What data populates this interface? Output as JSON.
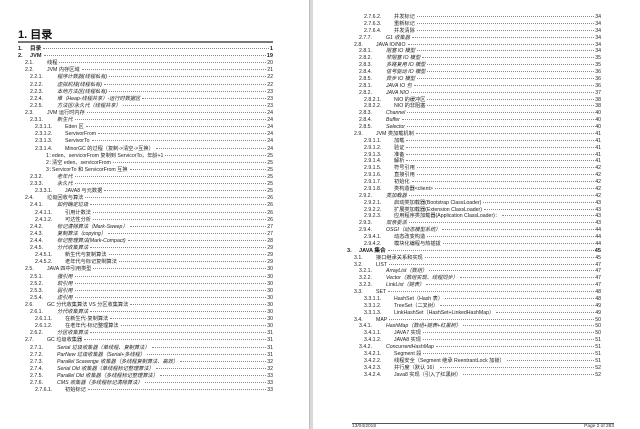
{
  "left_page": {
    "title": "1. 目录",
    "entries": [
      {
        "n": "1.",
        "t": "目录",
        "p": "1",
        "b": true
      },
      {
        "n": "2.",
        "t": "JVM",
        "p": "19",
        "b": true
      },
      {
        "n": "2.1.",
        "t": "线程",
        "p": "20"
      },
      {
        "n": "2.2.",
        "t": "JVM 内存区域",
        "p": "21"
      },
      {
        "n": "2.2.1.",
        "t": "程序计数器(线程私有)",
        "p": "22",
        "i": true
      },
      {
        "n": "2.2.2.",
        "t": "虚拟机栈(线程私有)",
        "p": "22",
        "i": true
      },
      {
        "n": "2.2.3.",
        "t": "本地方法区(线程私有)",
        "p": "23",
        "i": true
      },
      {
        "n": "2.2.4.",
        "t": "堆（Heap-线程共享）-运行时数据区",
        "p": "23",
        "i": true
      },
      {
        "n": "2.2.5.",
        "t": "方法区/永久代（线程共享）",
        "p": "23",
        "i": true
      },
      {
        "n": "2.3.",
        "t": "JVM 运行时内存",
        "p": "24"
      },
      {
        "n": "2.3.1.",
        "t": "新生代",
        "p": "24",
        "i": true
      },
      {
        "n": "2.3.1.1.",
        "t": "Eden 区",
        "p": "24"
      },
      {
        "n": "2.3.1.2.",
        "t": "ServivorFrom",
        "p": "24"
      },
      {
        "n": "2.3.1.3.",
        "t": "ServivorTo",
        "p": "24"
      },
      {
        "n": "2.3.1.4.",
        "t": "MinorGC 的过程（复制->清空->互换）",
        "p": "24"
      },
      {
        "n": "1：",
        "t": "eden、servicorFrom 复制到 ServicorTo，年龄+1",
        "p": "25",
        "lv": 5
      },
      {
        "n": "2：",
        "t": "清空 eden、servicorFrom",
        "p": "25",
        "lv": 5
      },
      {
        "n": "3：",
        "t": "ServicorTo 和 ServicorFrom 互换",
        "p": "25",
        "lv": 5
      },
      {
        "n": "2.3.2.",
        "t": "老年代",
        "p": "25",
        "i": true
      },
      {
        "n": "2.3.3.",
        "t": "永久代",
        "p": "25",
        "i": true
      },
      {
        "n": "2.3.3.1.",
        "t": "JAVA8 与元数据",
        "p": "25"
      },
      {
        "n": "2.4.",
        "t": "垃圾回收与算法",
        "p": "26"
      },
      {
        "n": "2.4.1.",
        "t": "如何确定垃圾",
        "p": "26",
        "i": true
      },
      {
        "n": "2.4.1.1.",
        "t": "引用计数法",
        "p": "26"
      },
      {
        "n": "2.4.1.2.",
        "t": "可达性分析",
        "p": "26"
      },
      {
        "n": "2.4.2.",
        "t": "标记清除算法（Mark-Sweep）",
        "p": "27",
        "i": true
      },
      {
        "n": "2.4.3.",
        "t": "复制算法（copying）",
        "p": "27",
        "i": true
      },
      {
        "n": "2.4.4.",
        "t": "标记整理算法(Mark-Compact)",
        "p": "28",
        "i": true
      },
      {
        "n": "2.4.5.",
        "t": "分代收集算法",
        "p": "29",
        "i": true
      },
      {
        "n": "2.4.5.1.",
        "t": "新生代与复制算法",
        "p": "29"
      },
      {
        "n": "2.4.5.2.",
        "t": "老年代与标记复制算法",
        "p": "29"
      },
      {
        "n": "2.5.",
        "t": "JAVA 四中引用类型",
        "p": "30"
      },
      {
        "n": "2.5.1.",
        "t": "强引用",
        "p": "30",
        "i": true
      },
      {
        "n": "2.5.2.",
        "t": "软引用",
        "p": "30",
        "i": true
      },
      {
        "n": "2.5.3.",
        "t": "弱引用",
        "p": "30",
        "i": true
      },
      {
        "n": "2.5.4.",
        "t": "虚引用",
        "p": "30",
        "i": true
      },
      {
        "n": "2.6.",
        "t": "GC 分代收集算法 VS 分区收集算法",
        "p": "30"
      },
      {
        "n": "2.6.1.",
        "t": "分代收集算法",
        "p": "30",
        "i": true
      },
      {
        "n": "2.6.1.1.",
        "t": "在新生代-复制算法",
        "p": "30"
      },
      {
        "n": "2.6.1.2.",
        "t": "在老年代-标记整理算法",
        "p": "30"
      },
      {
        "n": "2.6.2.",
        "t": "分区收集算法",
        "p": "31",
        "i": true
      },
      {
        "n": "2.7.",
        "t": "GC 垃圾收集器",
        "p": "31"
      },
      {
        "n": "2.7.1.",
        "t": "Serial 垃圾收集器（单线程、复制算法）",
        "p": "31",
        "i": true
      },
      {
        "n": "2.7.2.",
        "t": "ParNew 垃圾收集器（Serial+多线程）",
        "p": "31",
        "i": true
      },
      {
        "n": "2.7.3.",
        "t": "Parallel Scavenge 收集器（多线程复制算法、高效）",
        "p": "32",
        "i": true
      },
      {
        "n": "2.7.4.",
        "t": "Serial Old 收集器（单线程标记整理算法）",
        "p": "32",
        "i": true
      },
      {
        "n": "2.7.5.",
        "t": "Parallel Old 收集器（多线程标记整理算法）",
        "p": "33",
        "i": true
      },
      {
        "n": "2.7.6.",
        "t": "CMS 收集器（多线程标记清除算法）",
        "p": "33",
        "i": true
      },
      {
        "n": "2.7.6.1.",
        "t": "初始标记",
        "p": "33"
      }
    ]
  },
  "right_page": {
    "entries": [
      {
        "n": "2.7.6.2.",
        "t": "并发标记",
        "p": "34"
      },
      {
        "n": "2.7.6.3.",
        "t": "重新标记",
        "p": "34"
      },
      {
        "n": "2.7.6.4.",
        "t": "并发清除",
        "p": "34"
      },
      {
        "n": "2.7.7.",
        "t": "G1 收集器",
        "p": "34",
        "i": true
      },
      {
        "n": "2.8.",
        "t": "JAVA IO/NIO",
        "p": "34"
      },
      {
        "n": "2.8.1.",
        "t": "阻塞 IO 模型",
        "p": "34",
        "i": true
      },
      {
        "n": "2.8.2.",
        "t": "非阻塞 IO 模型",
        "p": "35",
        "i": true
      },
      {
        "n": "2.8.3.",
        "t": "多路复用 IO 模型",
        "p": "35",
        "i": true
      },
      {
        "n": "2.8.4.",
        "t": "信号驱动 IO 模型",
        "p": "36",
        "i": true
      },
      {
        "n": "2.8.5.",
        "t": "异步 IO 模型",
        "p": "36",
        "i": true
      },
      {
        "n": "2.8.1.",
        "t": "JAVA IO 包",
        "p": "36",
        "i": true
      },
      {
        "n": "2.8.2.",
        "t": "JAVA NIO",
        "p": "37",
        "i": true
      },
      {
        "n": "2.8.2.1.",
        "t": "NIO 的缓冲区",
        "p": "38"
      },
      {
        "n": "2.8.2.2.",
        "t": "NIO 的非阻塞",
        "p": "38"
      },
      {
        "n": "2.8.3.",
        "t": "Channel",
        "p": "40",
        "i": true
      },
      {
        "n": "2.8.4.",
        "t": "Buffer",
        "p": "40",
        "i": true
      },
      {
        "n": "2.8.5.",
        "t": "Selector",
        "p": "40",
        "i": true
      },
      {
        "n": "2.9.",
        "t": "JVM 类加载机制",
        "p": "41"
      },
      {
        "n": "2.9.1.1.",
        "t": "加载",
        "p": "41"
      },
      {
        "n": "2.9.1.2.",
        "t": "验证",
        "p": "41"
      },
      {
        "n": "2.9.1.3.",
        "t": "准备",
        "p": "41"
      },
      {
        "n": "2.9.1.4.",
        "t": "解析",
        "p": "41"
      },
      {
        "n": "2.9.1.5.",
        "t": "符号引用",
        "p": "42"
      },
      {
        "n": "2.9.1.6.",
        "t": "直接引用",
        "p": "42"
      },
      {
        "n": "2.9.1.7.",
        "t": "初始化",
        "p": "42"
      },
      {
        "n": "2.9.1.8.",
        "t": "类构造器<client>",
        "p": "42"
      },
      {
        "n": "2.9.2.",
        "t": "类加载器",
        "p": "42",
        "i": true
      },
      {
        "n": "2.9.2.1.",
        "t": "启动类加载器(Bootstrap ClassLoader)",
        "p": "43"
      },
      {
        "n": "2.9.2.2.",
        "t": "扩展类加载器(Extension ClassLoader)",
        "p": "43"
      },
      {
        "n": "2.9.2.3.",
        "t": "应用程序类加载器(Application ClassLoader)：",
        "p": "43"
      },
      {
        "n": "2.9.3.",
        "t": "双亲委派",
        "p": "43",
        "i": true
      },
      {
        "n": "2.9.4.",
        "t": "OSGI（动态模型系统）",
        "p": "44",
        "i": true
      },
      {
        "n": "2.9.4.1.",
        "t": "动态改变构造",
        "p": "44"
      },
      {
        "n": "2.9.4.2.",
        "t": "模块化编程与热插拔",
        "p": "44"
      },
      {
        "n": "3.",
        "t": "JAVA 集合",
        "p": "45",
        "b": true
      },
      {
        "n": "3.1.",
        "t": "接口继承关系和实现",
        "p": "45"
      },
      {
        "n": "3.2.",
        "t": "LIST",
        "p": "47"
      },
      {
        "n": "3.2.1.",
        "t": "ArrayList（数组）",
        "p": "47",
        "i": true
      },
      {
        "n": "3.2.2.",
        "t": "Vector（数组实现、线程同步）",
        "p": "47",
        "i": true
      },
      {
        "n": "3.2.3.",
        "t": "LinkList（链表）",
        "p": "47",
        "i": true
      },
      {
        "n": "3.3.",
        "t": "SET",
        "p": "48"
      },
      {
        "n": "3.3.1.1.",
        "t": "HashSet（Hash 表）",
        "p": "48"
      },
      {
        "n": "3.3.1.2.",
        "t": "TreeSet（二叉树）",
        "p": "49"
      },
      {
        "n": "3.3.1.3.",
        "t": "LinkHashSet（HashSet+LinkedHashMap）",
        "p": "49"
      },
      {
        "n": "3.4.",
        "t": "MAP",
        "p": "50"
      },
      {
        "n": "3.4.1.",
        "t": "HashMap（数组+链表+红黑树）",
        "p": "50",
        "i": true
      },
      {
        "n": "3.4.1.1.",
        "t": "JAVA7 实现",
        "p": "50"
      },
      {
        "n": "3.4.1.2.",
        "t": "JAVA8 实现",
        "p": "51"
      },
      {
        "n": "3.4.2.",
        "t": "ConcurrentHashMap",
        "p": "51",
        "i": true
      },
      {
        "n": "3.4.2.1.",
        "t": "Segment 段",
        "p": "51"
      },
      {
        "n": "3.4.2.2.",
        "t": "线程安全（Segment 继承 ReentrantLock 加锁）",
        "p": "51"
      },
      {
        "n": "3.4.2.3.",
        "t": "并行度（默认 16）",
        "p": "52"
      },
      {
        "n": "3.4.2.4.",
        "t": "Java8 实现（引入了红黑树）",
        "p": "52"
      }
    ],
    "footer": {
      "date": "13/04/2018",
      "page": "Page 2 of 283"
    }
  }
}
